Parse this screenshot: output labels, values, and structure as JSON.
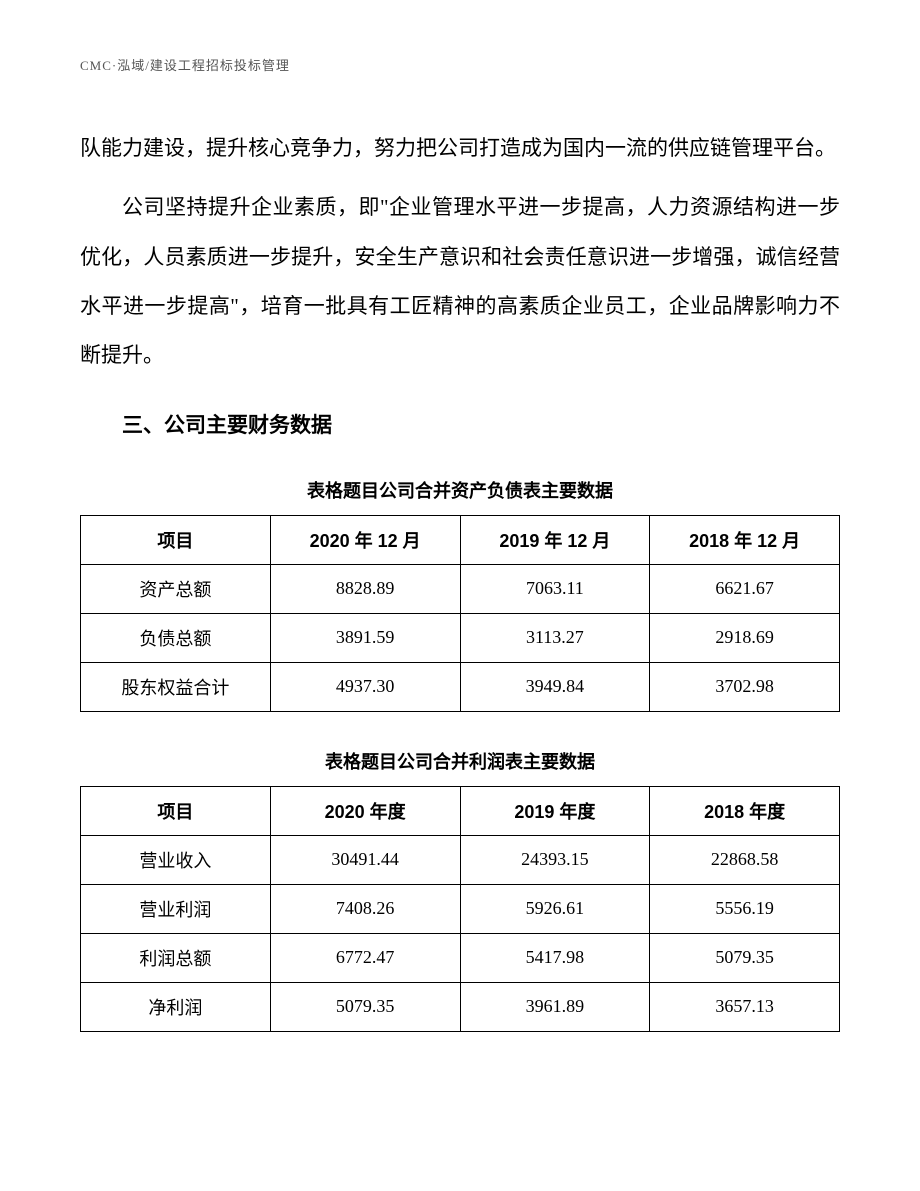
{
  "header": "CMC·泓域/建设工程招标投标管理",
  "paragraphs": {
    "p1": "队能力建设，提升核心竞争力，努力把公司打造成为国内一流的供应链管理平台。",
    "p2": "公司坚持提升企业素质，即\"企业管理水平进一步提高，人力资源结构进一步优化，人员素质进一步提升，安全生产意识和社会责任意识进一步增强，诚信经营水平进一步提高\"，培育一批具有工匠精神的高素质企业员工，企业品牌影响力不断提升。"
  },
  "section_heading": "三、公司主要财务数据",
  "table1": {
    "title": "表格题目公司合并资产负债表主要数据",
    "headers": [
      "项目",
      "2020 年 12 月",
      "2019 年 12 月",
      "2018 年 12 月"
    ],
    "rows": [
      [
        "资产总额",
        "8828.89",
        "7063.11",
        "6621.67"
      ],
      [
        "负债总额",
        "3891.59",
        "3113.27",
        "2918.69"
      ],
      [
        "股东权益合计",
        "4937.30",
        "3949.84",
        "3702.98"
      ]
    ]
  },
  "table2": {
    "title": "表格题目公司合并利润表主要数据",
    "headers": [
      "项目",
      "2020 年度",
      "2019 年度",
      "2018 年度"
    ],
    "rows": [
      [
        "营业收入",
        "30491.44",
        "24393.15",
        "22868.58"
      ],
      [
        "营业利润",
        "7408.26",
        "5926.61",
        "5556.19"
      ],
      [
        "利润总额",
        "6772.47",
        "5417.98",
        "5079.35"
      ],
      [
        "净利润",
        "5079.35",
        "3961.89",
        "3657.13"
      ]
    ]
  },
  "styling": {
    "page_bg": "#ffffff",
    "text_color": "#000000",
    "header_color": "#555555",
    "border_color": "#000000",
    "body_font_size": 21,
    "table_font_size": 18,
    "header_font_size": 13,
    "line_height": 2.35
  }
}
